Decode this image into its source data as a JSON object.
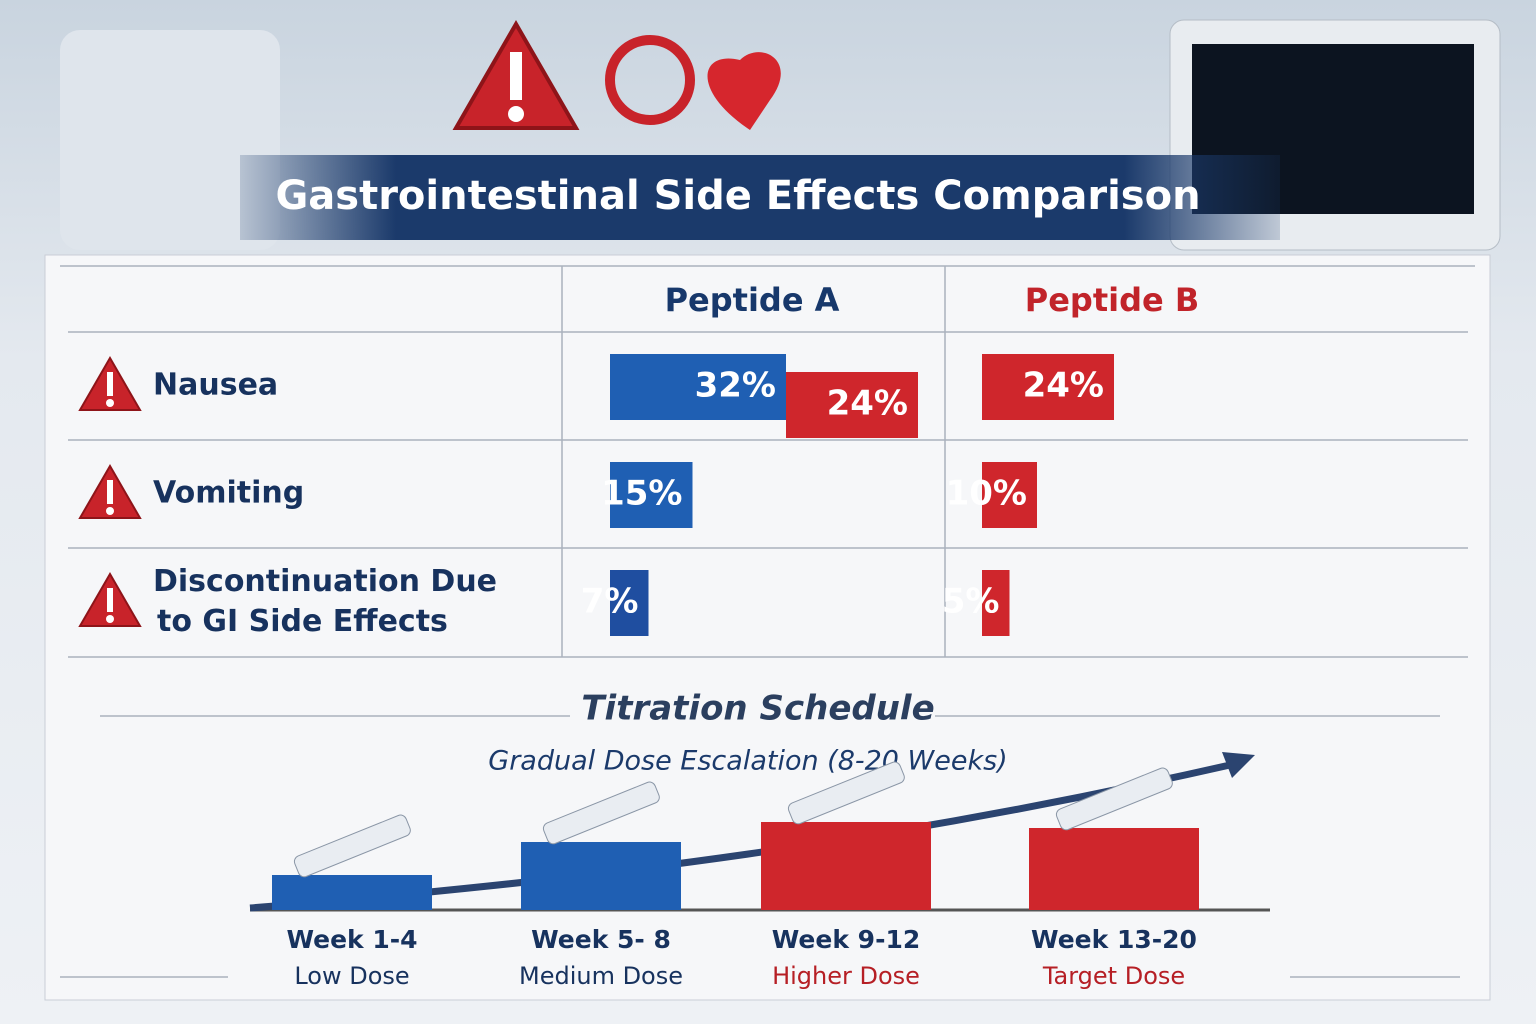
{
  "header": {
    "title": "Gastrointestinal Side Effects Comparison"
  },
  "table": {
    "columns": [
      {
        "name": "Peptide A",
        "color": "#17386b"
      },
      {
        "name": "Peptide B",
        "color": "#c1242a"
      }
    ],
    "rows": [
      {
        "label": "Nausea",
        "cells": [
          {
            "values": [
              32,
              24
            ],
            "value_labels": [
              "32%",
              "24%"
            ],
            "colors": [
              "#1f5fb3",
              "#cf262c"
            ]
          },
          {
            "values": [
              24
            ],
            "value_labels": [
              "24%"
            ],
            "colors": [
              "#cf262c"
            ]
          }
        ]
      },
      {
        "label": "Vomiting",
        "cells": [
          {
            "values": [
              15
            ],
            "value_labels": [
              "15%"
            ],
            "colors": [
              "#1f5fb3"
            ]
          },
          {
            "values": [
              10
            ],
            "value_labels": [
              "10%"
            ],
            "colors": [
              "#cf262c"
            ]
          }
        ]
      },
      {
        "label": "Discontinuation Due to GI Side Effects",
        "cells": [
          {
            "values": [
              7
            ],
            "value_labels": [
              "7%"
            ],
            "colors": [
              "#1f4ea0"
            ]
          },
          {
            "values": [
              5
            ],
            "value_labels": [
              "5%"
            ],
            "colors": [
              "#cf262c"
            ]
          }
        ]
      }
    ]
  },
  "titration": {
    "title": "Titration Schedule",
    "subtitle": "Gradual Dose Escalation (8-20 Weeks)",
    "steps": [
      {
        "week": "Week 1-4",
        "dose": "Low Dose",
        "color": "#1f5fb3"
      },
      {
        "week": "Week 5- 8",
        "dose": "Medium Dose",
        "color": "#1f5fb3"
      },
      {
        "week": "Week 9-12",
        "dose": "Higher Dose",
        "color": "#cf262c"
      },
      {
        "week": "Week 13-20",
        "dose": "Target Dose",
        "color": "#cf262c"
      }
    ]
  }
}
